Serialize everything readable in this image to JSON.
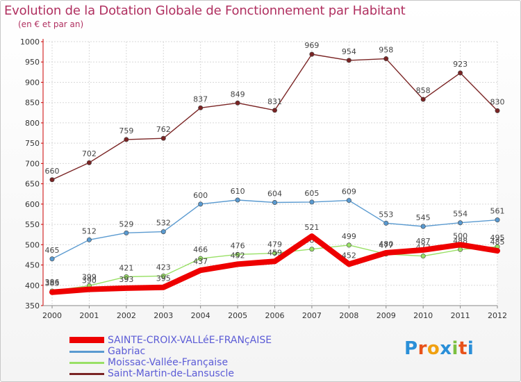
{
  "chart_data": {
    "type": "line",
    "title": "Evolution de la Dotation Globale de Fonctionnement par Habitant",
    "subtitle": "(en € et par an)",
    "x": [
      "2000",
      "2001",
      "2002",
      "2003",
      "2004",
      "2005",
      "2006",
      "2007",
      "2008",
      "2009",
      "2010",
      "2011",
      "2012"
    ],
    "ylim": [
      350,
      1000
    ],
    "yticks": [
      350,
      400,
      450,
      500,
      550,
      600,
      650,
      700,
      750,
      800,
      850,
      900,
      950,
      1000
    ],
    "series": [
      {
        "name": "Saint-Martin-de-Lansuscle",
        "color": "#7a2424",
        "values": [
          660,
          702,
          759,
          762,
          837,
          849,
          831,
          969,
          954,
          958,
          858,
          923,
          830
        ]
      },
      {
        "name": "Gabriac",
        "color": "#5a9ad0",
        "values": [
          465,
          512,
          529,
          532,
          600,
          610,
          604,
          605,
          609,
          553,
          545,
          554,
          561
        ]
      },
      {
        "name": "Moissac-Vallée-Française",
        "color": "#99e066",
        "values": [
          386,
          399,
          421,
          423,
          466,
          476,
          479,
          489,
          499,
          477,
          472,
          488,
          495
        ]
      },
      {
        "name": "SAINTE-CROIX-VALLéE-FRANçAISE",
        "color": "#ee0000",
        "values": [
          383,
          390,
          393,
          395,
          437,
          452,
          459,
          521,
          452,
          480,
          487,
          500,
          485
        ]
      }
    ],
    "legend_order": [
      3,
      1,
      2,
      0
    ]
  },
  "logo": {
    "text": "Proxiti"
  }
}
